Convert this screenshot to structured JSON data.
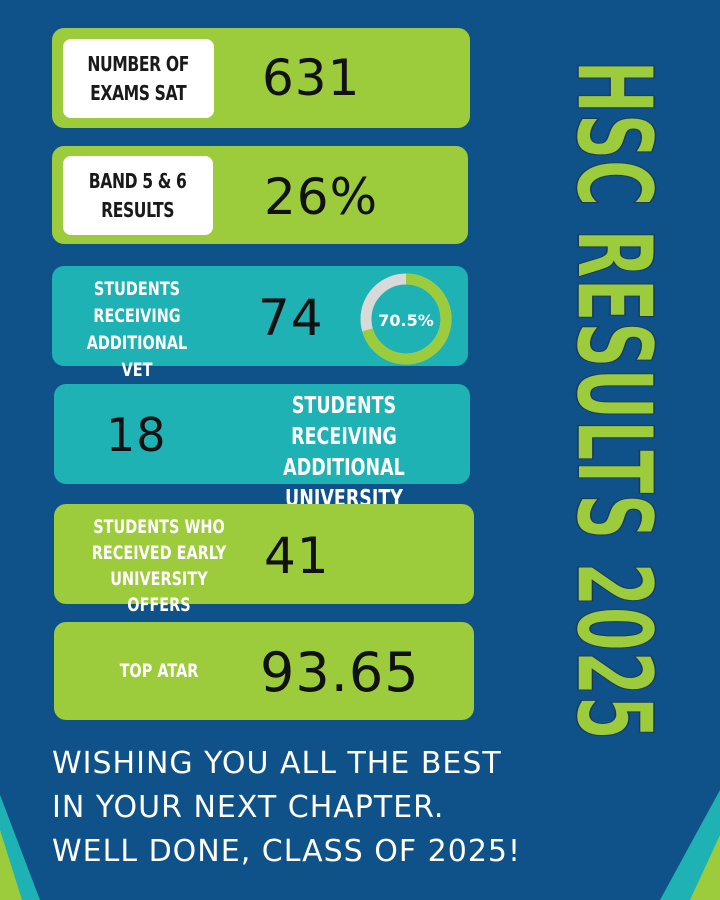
{
  "colors": {
    "background": "#0f5189",
    "green": "#9ccb3b",
    "teal": "#1fb2b4",
    "text_dark": "#111111",
    "white": "#ffffff"
  },
  "title": "HSC RESULTS 2025",
  "stats": {
    "exams": {
      "label": "NUMBER OF\nEXAMS SAT",
      "value": "631"
    },
    "band": {
      "label": "BAND 5 & 6\nRESULTS",
      "value": "26%"
    },
    "vet": {
      "label": "STUDENTS RECEIVING\nADDITIONAL VET\nQUALIFICATIONS",
      "value": "74",
      "donut_label": "70.5%",
      "donut_percent": 70.5
    },
    "university": {
      "value": "18",
      "label": "STUDENTS RECEIVING\nADDITIONAL UNIVERSITY\nLEVEL QUALIFICATIONS"
    },
    "early": {
      "label": "STUDENTS WHO\nRECEIVED EARLY\nUNIVERSITY OFFERS",
      "value": "41"
    },
    "atar": {
      "label": "TOP ATAR",
      "value": "93.65"
    }
  },
  "footer": {
    "line1": "WISHING YOU ALL THE BEST",
    "line2": "IN YOUR NEXT CHAPTER.",
    "line3": "WELL DONE, CLASS OF 2025!"
  }
}
